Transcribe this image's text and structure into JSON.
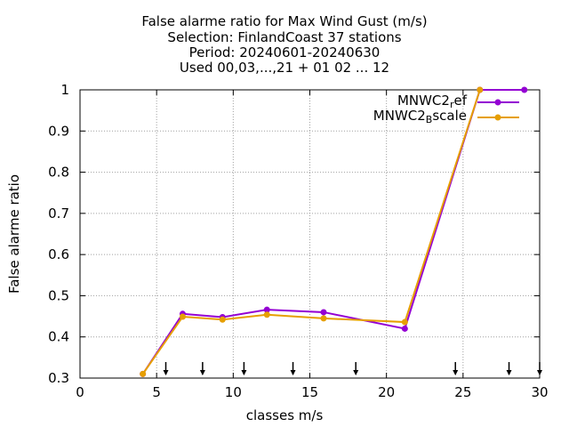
{
  "title_lines": [
    "False alarme ratio  for Max Wind Gust (m/s)",
    "Selection: FinlandCoast     37 stations",
    "Period: 20240601-20240630",
    "Used 00,03,...,21 + 01 02 ... 12"
  ],
  "chart_data": {
    "type": "line",
    "xlabel": "classes m/s",
    "ylabel": "False alarme ratio",
    "xlim": [
      0,
      30
    ],
    "ylim": [
      0.3,
      1
    ],
    "x_ticks": [
      0,
      5,
      10,
      15,
      20,
      25,
      30
    ],
    "y_ticks": [
      0.3,
      0.4,
      0.5,
      0.6,
      0.7,
      0.8,
      0.9,
      1
    ],
    "y_tick_labels": [
      "0.3",
      "0.4",
      "0.5",
      "0.6",
      "0.7",
      "0.8",
      "0.9",
      "1"
    ],
    "grid": true,
    "legend_position": "top-right",
    "class_arrows_x": [
      5.6,
      8.0,
      10.7,
      13.9,
      18.0,
      24.5,
      28.0,
      30.0
    ],
    "series": [
      {
        "name_main": "MNWC2",
        "name_sub": "r",
        "name_tail": "ef",
        "color": "#9400d3",
        "x": [
          4.1,
          6.7,
          9.3,
          12.2,
          15.9,
          21.2,
          26.1,
          29.0
        ],
        "y": [
          0.31,
          0.456,
          0.448,
          0.466,
          0.46,
          0.42,
          1.0,
          1.0
        ]
      },
      {
        "name_main": "MNWC2",
        "name_sub": "B",
        "name_tail": "scale",
        "color": "#e69f00",
        "x": [
          4.1,
          6.7,
          9.3,
          12.2,
          15.9,
          21.2,
          26.1
        ],
        "y": [
          0.31,
          0.449,
          0.442,
          0.454,
          0.445,
          0.436,
          1.0
        ]
      }
    ]
  }
}
